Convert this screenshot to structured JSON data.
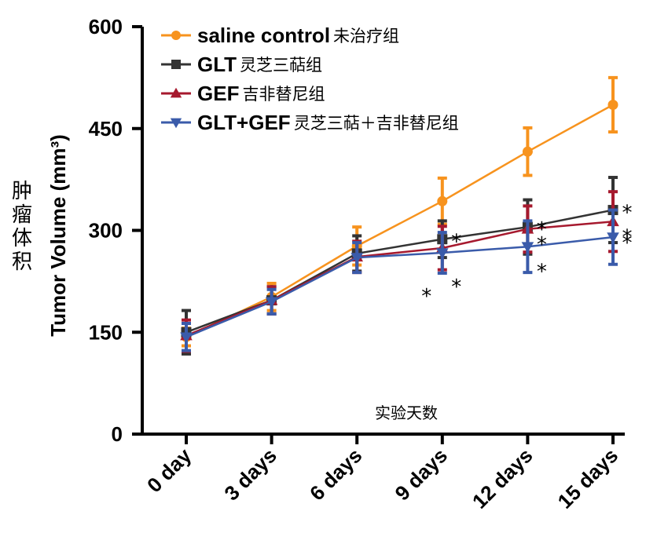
{
  "chart_data": {
    "type": "line",
    "title": "",
    "xlabel": "实验天数",
    "ylabel": "Tumor Volume (mm³)",
    "ylabel_cn": "肿瘤体积",
    "ylim": [
      0,
      600
    ],
    "yticks": [
      0,
      150,
      300,
      450,
      600
    ],
    "categories": [
      "0 day",
      "3 days",
      "6 days",
      "9 days",
      "12 days",
      "15 days"
    ],
    "grid": false,
    "legend_position": "top-left",
    "series": [
      {
        "name": "saline control",
        "name_cn": "未治疗组",
        "color": "#F7931E",
        "marker": "circle",
        "values": [
          143,
          202,
          277,
          343,
          416,
          485
        ],
        "errors": [
          13,
          20,
          28,
          34,
          35,
          40
        ],
        "significance": [
          "",
          "",
          "",
          "",
          "",
          ""
        ]
      },
      {
        "name": "GLT",
        "name_cn": "灵芝三萜组",
        "color": "#333333",
        "marker": "square",
        "values": [
          150,
          197,
          266,
          287,
          305,
          330
        ],
        "errors": [
          32,
          20,
          26,
          27,
          40,
          48
        ],
        "significance": [
          "",
          "",
          "",
          "*",
          "*",
          "*"
        ]
      },
      {
        "name": "GEF",
        "name_cn": "吉非替尼组",
        "color": "#A6192E",
        "marker": "triangle-up",
        "values": [
          145,
          197,
          261,
          274,
          302,
          313
        ],
        "errors": [
          23,
          20,
          23,
          32,
          34,
          44
        ],
        "significance": [
          "",
          "",
          "",
          "*",
          "*",
          "*"
        ]
      },
      {
        "name": "GLT+GEF",
        "name_cn": "灵芝三萜＋吉非替尼组",
        "color": "#3A5BAA",
        "marker": "triangle-down",
        "values": [
          143,
          195,
          260,
          267,
          276,
          290
        ],
        "errors": [
          20,
          18,
          22,
          30,
          38,
          40
        ],
        "significance": [
          "",
          "",
          "",
          "*",
          "*",
          "*"
        ]
      }
    ]
  }
}
